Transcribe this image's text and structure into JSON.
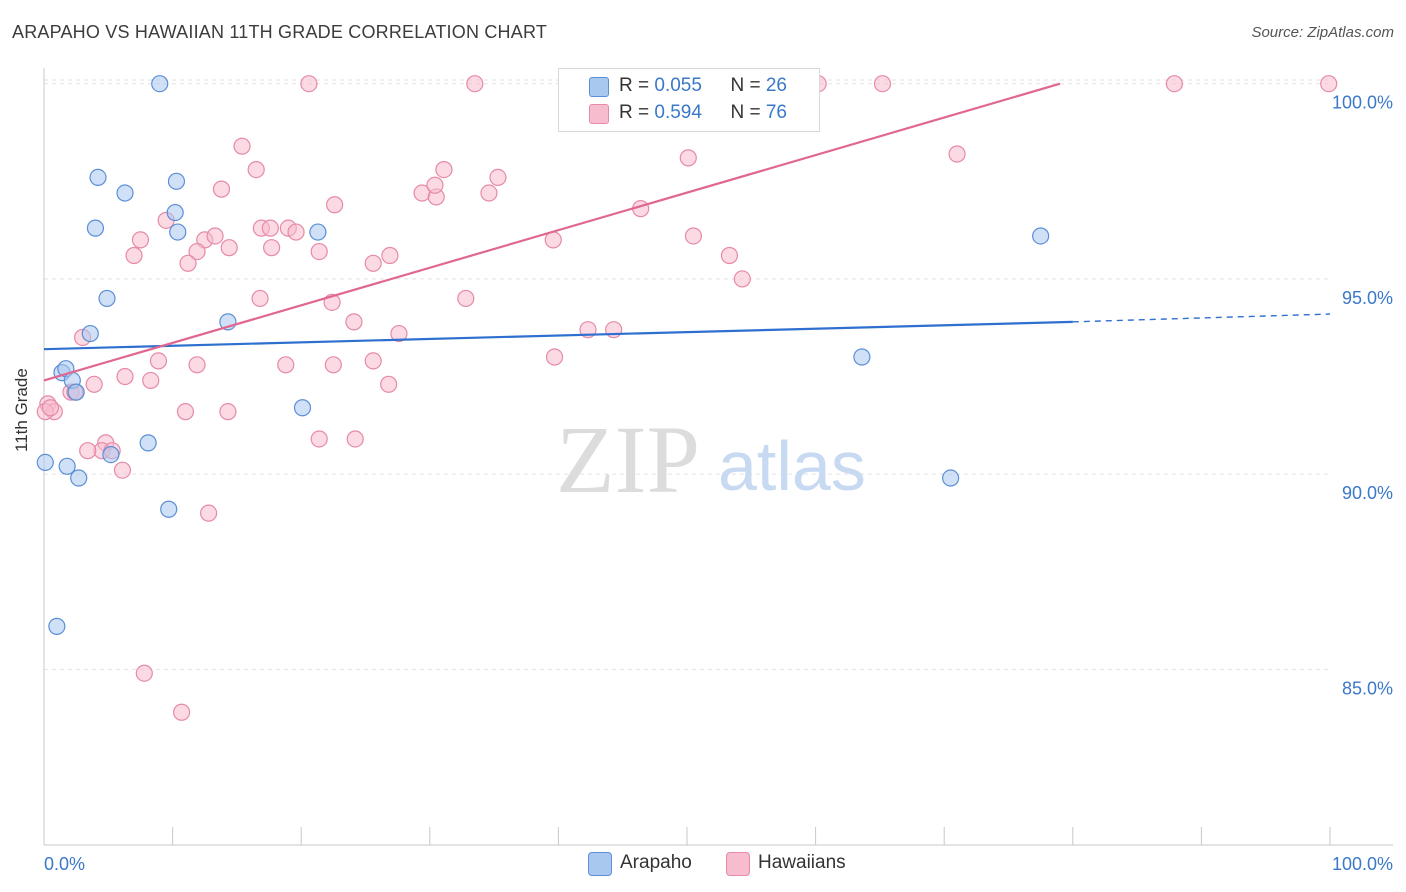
{
  "title": "ARAPAHO VS HAWAIIAN 11TH GRADE CORRELATION CHART",
  "source": "Source: ZipAtlas.com",
  "watermark": {
    "zip": "ZIP",
    "atlas": "atlas"
  },
  "legend": {
    "rows": [
      {
        "r_label": "R = ",
        "r_value": "0.055",
        "n_label": "N = ",
        "n_value": "26"
      },
      {
        "r_label": "R = ",
        "r_value": "0.594",
        "n_label": "N = ",
        "n_value": "76"
      }
    ]
  },
  "colors": {
    "arapaho_fill": "#a9c8f0",
    "arapaho_stroke": "#5b8fd6",
    "arapaho_line": "#2e6fcf",
    "hawaiian_fill": "#f7bccd",
    "hawaiian_stroke": "#e58aa7",
    "hawaiian_line": "#e06791",
    "axis_text": "#3a78c9",
    "grid": "#e2e2e2"
  },
  "chart_data": {
    "type": "scatter",
    "title": "ARAPAHO VS HAWAIIAN 11TH GRADE CORRELATION CHART",
    "xlabel": "",
    "ylabel": "11th Grade",
    "xlim": [
      0,
      100
    ],
    "ylim": [
      80.5,
      100.3
    ],
    "x_tick_labels": [
      "0.0%",
      "100.0%"
    ],
    "y_ticks": [
      85,
      90,
      95,
      100
    ],
    "y_tick_labels": [
      "85.0%",
      "90.0%",
      "95.0%",
      "100.0%"
    ],
    "legend_position": "bottom-center",
    "series": [
      {
        "name": "Arapaho",
        "r": 0.055,
        "n": 26,
        "trend": {
          "x0": 0,
          "y0": 93.2,
          "x1": 80,
          "y1": 93.9,
          "dash_to_x": 100,
          "dash_to_y": 94.1
        },
        "points": [
          [
            9,
            100.0
          ],
          [
            4.2,
            97.6
          ],
          [
            6.3,
            97.2
          ],
          [
            10.3,
            97.5
          ],
          [
            10.2,
            96.7
          ],
          [
            4,
            96.3
          ],
          [
            10.4,
            96.2
          ],
          [
            21.3,
            96.2
          ],
          [
            77.5,
            96.1
          ],
          [
            4.9,
            94.5
          ],
          [
            14.3,
            93.9
          ],
          [
            3.6,
            93.6
          ],
          [
            1.4,
            92.6
          ],
          [
            1.7,
            92.7
          ],
          [
            2.2,
            92.4
          ],
          [
            2.5,
            92.1
          ],
          [
            63.6,
            93.0
          ],
          [
            20.1,
            91.7
          ],
          [
            8.1,
            90.8
          ],
          [
            5.2,
            90.5
          ],
          [
            0.1,
            90.3
          ],
          [
            1.8,
            90.2
          ],
          [
            2.7,
            89.9
          ],
          [
            70.5,
            89.9
          ],
          [
            9.7,
            89.1
          ],
          [
            1,
            86.1
          ]
        ]
      },
      {
        "name": "Hawaiians",
        "r": 0.594,
        "n": 76,
        "trend": {
          "x0": 0,
          "y0": 92.4,
          "x1": 79,
          "y1": 100.0
        },
        "points": [
          [
            20.6,
            100.0
          ],
          [
            33.5,
            100.0
          ],
          [
            50.3,
            100.0
          ],
          [
            60.2,
            100.0
          ],
          [
            65.2,
            100.0
          ],
          [
            87.9,
            100.0
          ],
          [
            99.9,
            100.0
          ],
          [
            15.4,
            98.4
          ],
          [
            50.1,
            98.1
          ],
          [
            71,
            98.2
          ],
          [
            16.5,
            97.8
          ],
          [
            31.1,
            97.8
          ],
          [
            35.3,
            97.6
          ],
          [
            13.8,
            97.3
          ],
          [
            29.4,
            97.2
          ],
          [
            30.5,
            97.1
          ],
          [
            34.6,
            97.2
          ],
          [
            22.6,
            96.9
          ],
          [
            30.4,
            97.4
          ],
          [
            9.5,
            96.5
          ],
          [
            46.4,
            96.8
          ],
          [
            16.9,
            96.3
          ],
          [
            17.6,
            96.3
          ],
          [
            19,
            96.3
          ],
          [
            19.6,
            96.2
          ],
          [
            7.5,
            96.0
          ],
          [
            12.5,
            96.0
          ],
          [
            13.3,
            96.1
          ],
          [
            39.6,
            96.0
          ],
          [
            50.5,
            96.1
          ],
          [
            7,
            95.6
          ],
          [
            11.9,
            95.7
          ],
          [
            14.4,
            95.8
          ],
          [
            17.7,
            95.8
          ],
          [
            21.4,
            95.7
          ],
          [
            26.9,
            95.6
          ],
          [
            53.3,
            95.6
          ],
          [
            11.2,
            95.4
          ],
          [
            25.6,
            95.4
          ],
          [
            54.3,
            95.0
          ],
          [
            16.8,
            94.5
          ],
          [
            22.4,
            94.4
          ],
          [
            32.8,
            94.5
          ],
          [
            24.1,
            93.9
          ],
          [
            27.6,
            93.6
          ],
          [
            42.3,
            93.7
          ],
          [
            44.3,
            93.7
          ],
          [
            3,
            93.5
          ],
          [
            8.9,
            92.9
          ],
          [
            11.9,
            92.8
          ],
          [
            18.8,
            92.8
          ],
          [
            22.5,
            92.8
          ],
          [
            25.6,
            92.9
          ],
          [
            39.7,
            93.0
          ],
          [
            6.3,
            92.5
          ],
          [
            8.3,
            92.4
          ],
          [
            3.9,
            92.3
          ],
          [
            26.8,
            92.3
          ],
          [
            2.1,
            92.1
          ],
          [
            2.4,
            92.1
          ],
          [
            0.3,
            91.8
          ],
          [
            0.8,
            91.6
          ],
          [
            11,
            91.6
          ],
          [
            14.3,
            91.6
          ],
          [
            0.1,
            91.6
          ],
          [
            21.4,
            90.9
          ],
          [
            24.2,
            90.9
          ],
          [
            4.8,
            90.8
          ],
          [
            4.5,
            90.6
          ],
          [
            3.4,
            90.6
          ],
          [
            5.3,
            90.6
          ],
          [
            6.1,
            90.1
          ],
          [
            12.8,
            89.0
          ],
          [
            7.8,
            84.9
          ],
          [
            10.7,
            83.9
          ],
          [
            0.5,
            91.7
          ]
        ]
      }
    ]
  }
}
